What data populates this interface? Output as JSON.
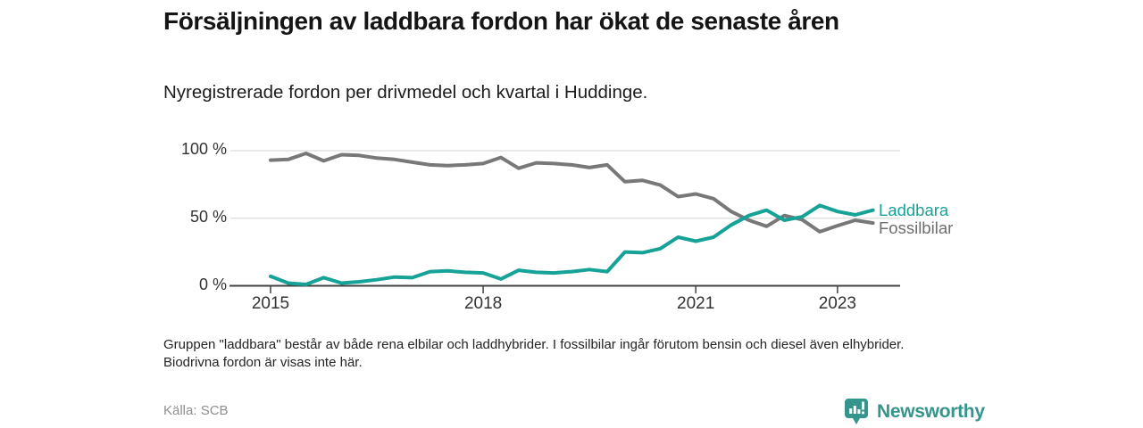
{
  "header": {
    "title": "Försäljningen av laddbara fordon har ökat de senaste åren",
    "subtitle": "Nyregistrerade fordon per drivmedel och kvartal i Huddinge."
  },
  "chart_data": {
    "type": "line",
    "title": "Försäljningen av laddbara fordon har ökat de senaste åren",
    "subtitle": "Nyregistrerade fordon per drivmedel och kvartal i Huddinge.",
    "unit": "%",
    "ylim": [
      0,
      100
    ],
    "grid": "horizontal",
    "legend_position": "inline-right",
    "y_ticks": [
      {
        "label": "100 %",
        "value": 100
      },
      {
        "label": "50 %",
        "value": 50
      },
      {
        "label": "0 %",
        "value": 0
      }
    ],
    "x_ticks": [
      {
        "label": "2015",
        "quarter_index": 0
      },
      {
        "label": "2018",
        "quarter_index": 12
      },
      {
        "label": "2021",
        "quarter_index": 24
      },
      {
        "label": "2023",
        "quarter_index": 32
      }
    ],
    "categories": [
      "2015 Q1",
      "2015 Q2",
      "2015 Q3",
      "2015 Q4",
      "2016 Q1",
      "2016 Q2",
      "2016 Q3",
      "2016 Q4",
      "2017 Q1",
      "2017 Q2",
      "2017 Q3",
      "2017 Q4",
      "2018 Q1",
      "2018 Q2",
      "2018 Q3",
      "2018 Q4",
      "2019 Q1",
      "2019 Q2",
      "2019 Q3",
      "2019 Q4",
      "2020 Q1",
      "2020 Q2",
      "2020 Q3",
      "2020 Q4",
      "2021 Q1",
      "2021 Q2",
      "2021 Q3",
      "2021 Q4",
      "2022 Q1",
      "2022 Q2",
      "2022 Q3",
      "2022 Q4",
      "2023 Q1",
      "2023 Q2",
      "2023 Q3"
    ],
    "series": [
      {
        "name": "Fossilbilar",
        "color": "#787878",
        "values": [
          93,
          93.5,
          98,
          92.5,
          97,
          96.5,
          94.5,
          93.5,
          91.5,
          89.5,
          89,
          89.5,
          90.5,
          95,
          87,
          91,
          90.5,
          89.5,
          87.5,
          89.5,
          77,
          78,
          74.5,
          66,
          68,
          64.5,
          55,
          48.5,
          44,
          52,
          49,
          40,
          44.5,
          48.5,
          46.5
        ]
      },
      {
        "name": "Laddbara",
        "color": "#17a297",
        "values": [
          7,
          2,
          1,
          6,
          2,
          3,
          4.5,
          6.5,
          6,
          10.5,
          11,
          10,
          9.5,
          5,
          11.5,
          10,
          9.5,
          10.5,
          12,
          10.5,
          25,
          24.5,
          27.5,
          36,
          33,
          36,
          45,
          52,
          56,
          48.5,
          51,
          59.5,
          55,
          52.5,
          56
        ]
      }
    ]
  },
  "footnote": "Gruppen \"laddbara\" består av både rena elbilar och laddhybrider. I fossilbilar ingår förutom bensin och diesel även elhybrider. Biodrivna fordon är visas inte här.",
  "source": "Källa: SCB",
  "logo": {
    "text": "Newsworthy",
    "color": "#35948b",
    "icon": "bar-chart-bubble-icon"
  }
}
